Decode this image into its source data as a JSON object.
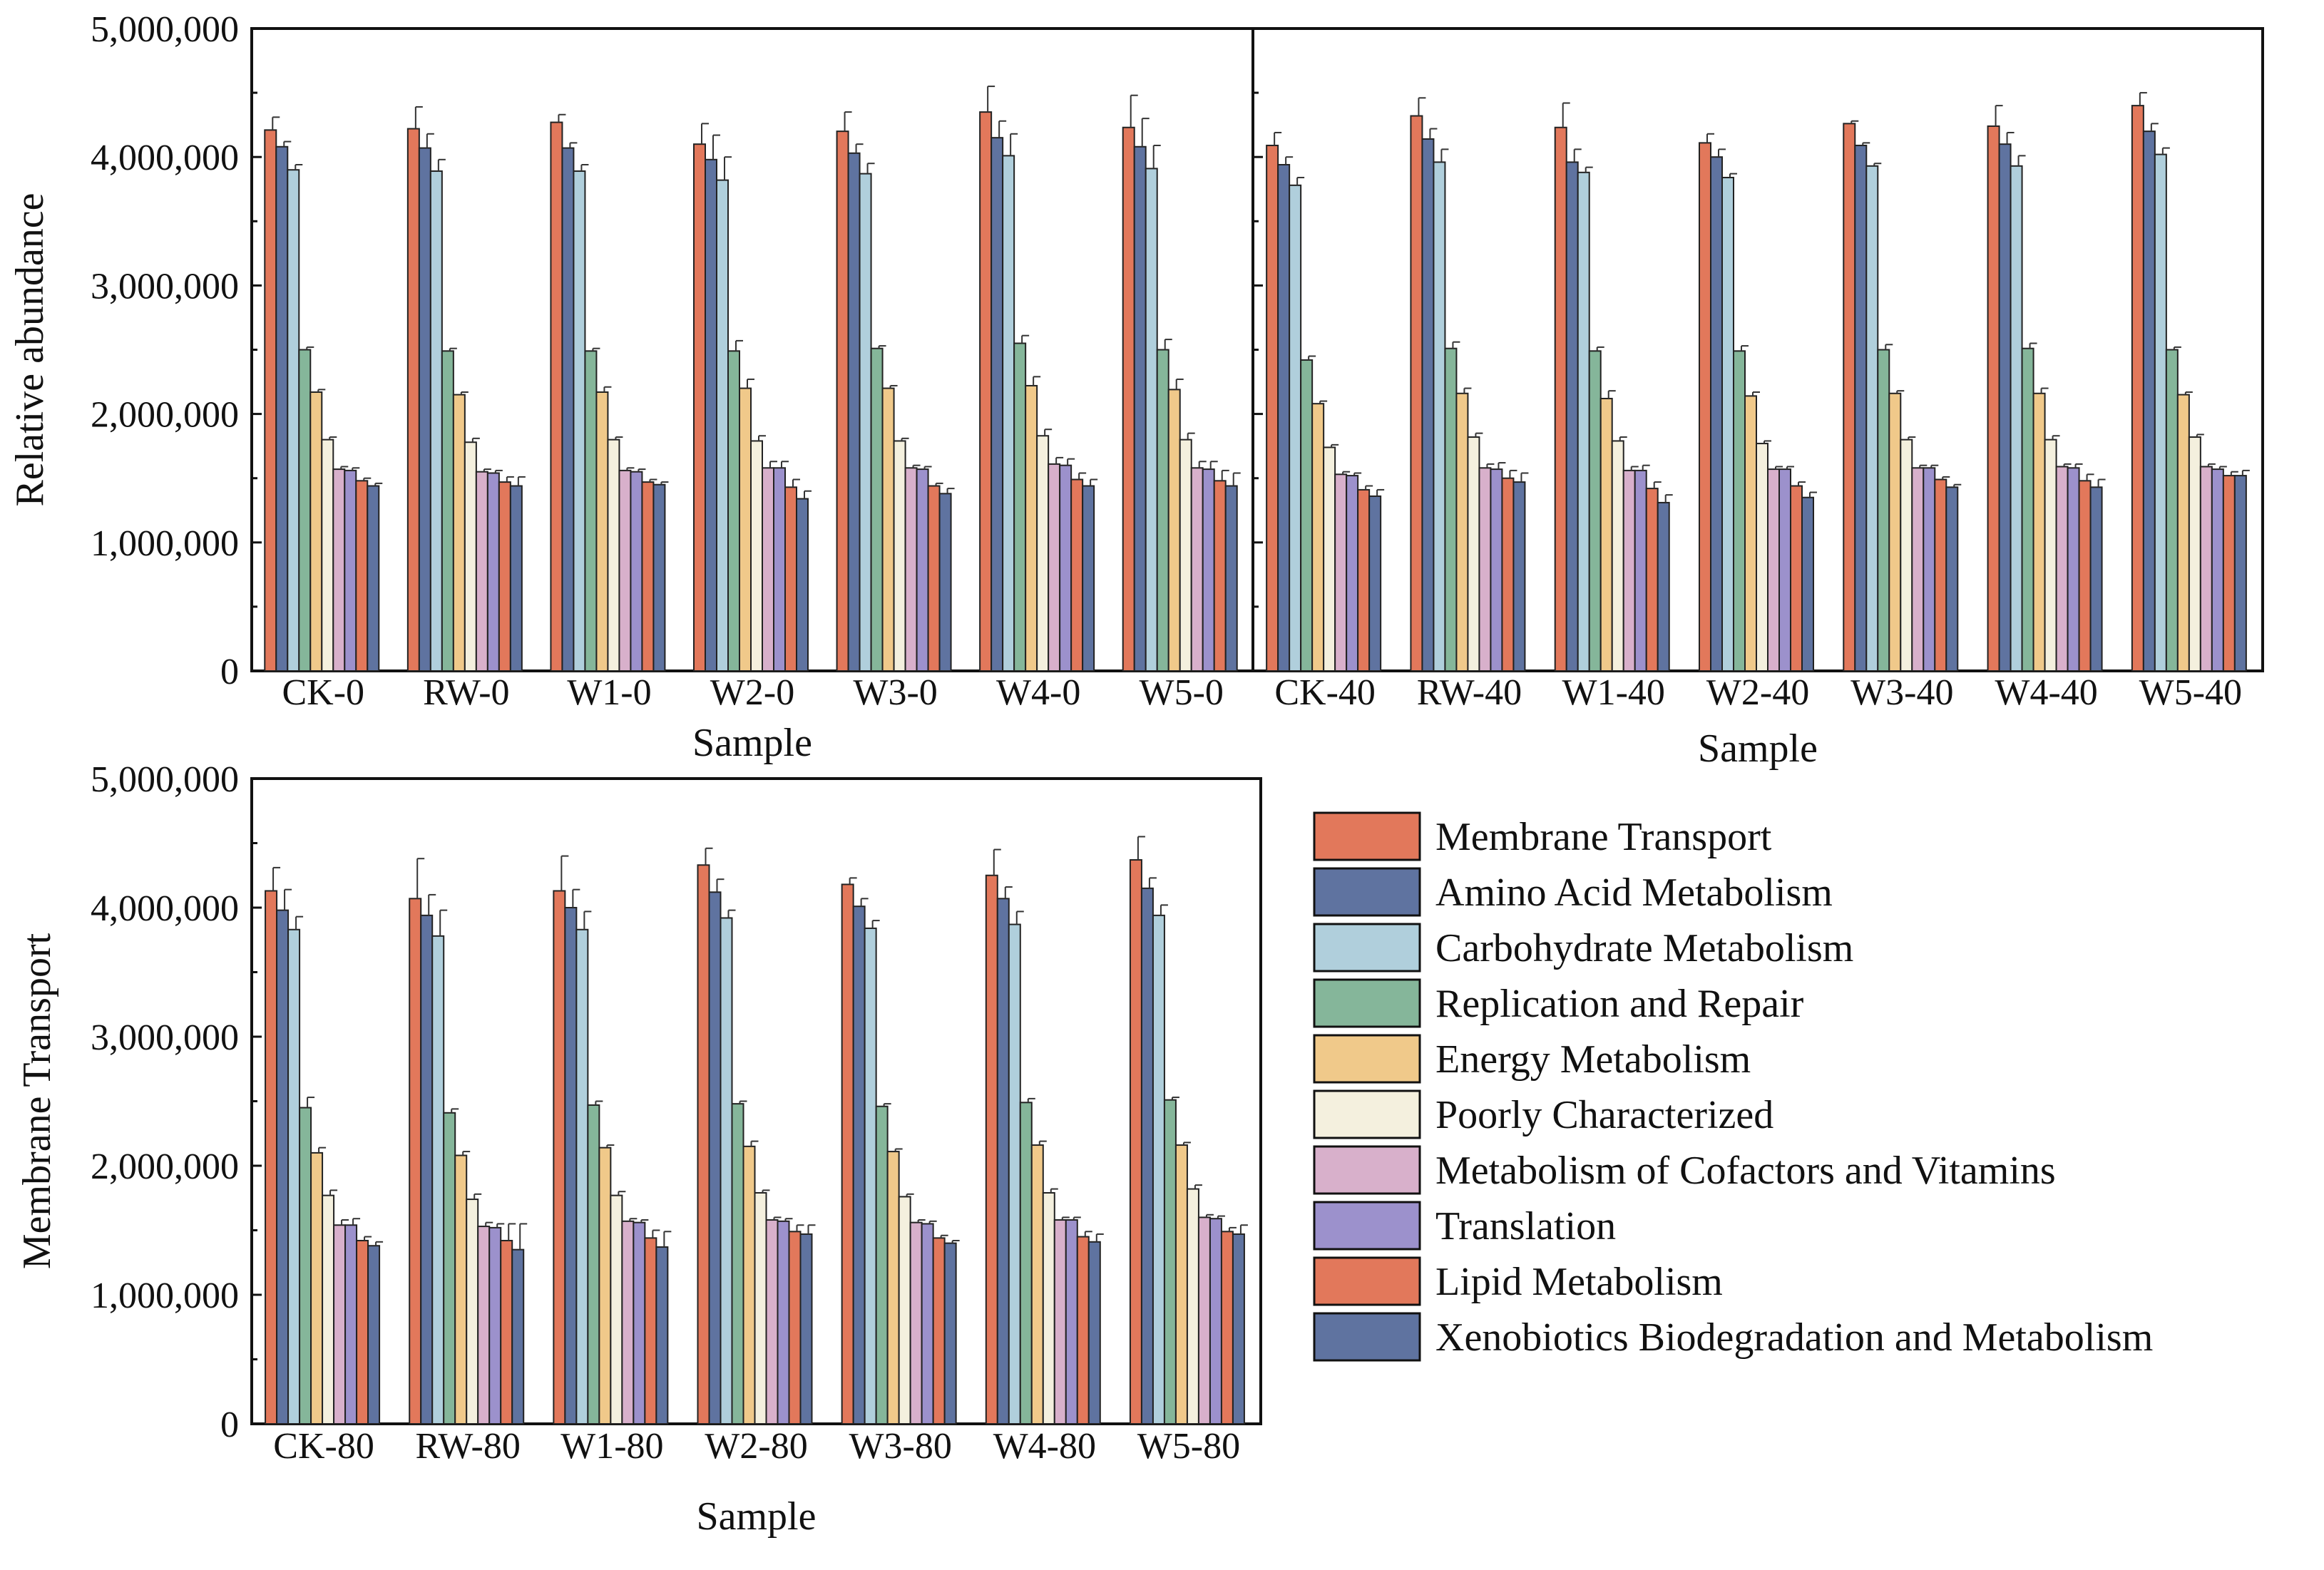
{
  "chart_data": [
    {
      "type": "bar",
      "panel": "top-left",
      "categories": [
        "CK-0",
        "RW-0",
        "W1-0",
        "W2-0",
        "W3-0",
        "W4-0",
        "W5-0"
      ],
      "xlabel": "Sample",
      "ylabel": "Relative abundance",
      "ylim": [
        0,
        5000000
      ],
      "yticks": [
        "0",
        "1,000,000",
        "2,000,000",
        "3,000,000",
        "4,000,000",
        "5,000,000"
      ],
      "grid": false,
      "series": [
        {
          "name": "Membrane Transport",
          "values": [
            4210000,
            4220000,
            4270000,
            4100000,
            4200000,
            4350000,
            4230000
          ],
          "errors": [
            100000,
            170000,
            60000,
            160000,
            150000,
            200000,
            250000
          ]
        },
        {
          "name": "Amino Acid Metabolism",
          "values": [
            4080000,
            4070000,
            4070000,
            3980000,
            4030000,
            4150000,
            4080000
          ],
          "errors": [
            40000,
            110000,
            40000,
            190000,
            70000,
            130000,
            220000
          ]
        },
        {
          "name": "Carbohydrate Metabolism",
          "values": [
            3900000,
            3890000,
            3890000,
            3820000,
            3870000,
            4010000,
            3910000
          ],
          "errors": [
            40000,
            90000,
            50000,
            180000,
            80000,
            170000,
            180000
          ]
        },
        {
          "name": "Replication and Repair",
          "values": [
            2500000,
            2490000,
            2490000,
            2490000,
            2510000,
            2550000,
            2500000
          ],
          "errors": [
            20000,
            20000,
            20000,
            80000,
            20000,
            60000,
            80000
          ]
        },
        {
          "name": "Energy Metabolism",
          "values": [
            2170000,
            2150000,
            2170000,
            2200000,
            2200000,
            2220000,
            2190000
          ],
          "errors": [
            20000,
            20000,
            40000,
            70000,
            20000,
            70000,
            80000
          ]
        },
        {
          "name": "Poorly Characterized",
          "values": [
            1800000,
            1780000,
            1800000,
            1790000,
            1790000,
            1830000,
            1800000
          ],
          "errors": [
            20000,
            30000,
            20000,
            40000,
            20000,
            50000,
            50000
          ]
        },
        {
          "name": "Metabolism of Cofactors and Vitamins",
          "values": [
            1570000,
            1550000,
            1560000,
            1580000,
            1580000,
            1610000,
            1580000
          ],
          "errors": [
            20000,
            20000,
            20000,
            50000,
            20000,
            50000,
            50000
          ]
        },
        {
          "name": "Translation",
          "values": [
            1560000,
            1540000,
            1550000,
            1580000,
            1570000,
            1600000,
            1570000
          ],
          "errors": [
            20000,
            20000,
            20000,
            50000,
            20000,
            50000,
            60000
          ]
        },
        {
          "name": "Lipid Metabolism",
          "values": [
            1480000,
            1470000,
            1470000,
            1430000,
            1440000,
            1490000,
            1480000
          ],
          "errors": [
            20000,
            40000,
            20000,
            60000,
            20000,
            50000,
            80000
          ]
        },
        {
          "name": "Xenobiotics Biodegradation and Metabolism",
          "values": [
            1440000,
            1440000,
            1450000,
            1340000,
            1380000,
            1440000,
            1440000
          ],
          "errors": [
            20000,
            70000,
            20000,
            60000,
            40000,
            50000,
            100000
          ]
        }
      ]
    },
    {
      "type": "bar",
      "panel": "top-right",
      "categories": [
        "CK-40",
        "RW-40",
        "W1-40",
        "W2-40",
        "W3-40",
        "W4-40",
        "W5-40"
      ],
      "xlabel": "Sample",
      "ylabel": "",
      "ylim": [
        0,
        5000000
      ],
      "grid": false,
      "series": [
        {
          "name": "Membrane Transport",
          "values": [
            4090000,
            4320000,
            4230000,
            4110000,
            4260000,
            4240000,
            4400000
          ],
          "errors": [
            100000,
            140000,
            190000,
            70000,
            20000,
            160000,
            100000
          ]
        },
        {
          "name": "Amino Acid Metabolism",
          "values": [
            3940000,
            4140000,
            3960000,
            4000000,
            4090000,
            4100000,
            4200000
          ],
          "errors": [
            60000,
            80000,
            100000,
            60000,
            20000,
            90000,
            60000
          ]
        },
        {
          "name": "Carbohydrate Metabolism",
          "values": [
            3780000,
            3960000,
            3880000,
            3840000,
            3930000,
            3930000,
            4020000
          ],
          "errors": [
            60000,
            100000,
            40000,
            30000,
            20000,
            80000,
            50000
          ]
        },
        {
          "name": "Replication and Repair",
          "values": [
            2420000,
            2510000,
            2490000,
            2490000,
            2500000,
            2510000,
            2500000
          ],
          "errors": [
            30000,
            50000,
            30000,
            40000,
            40000,
            40000,
            20000
          ]
        },
        {
          "name": "Energy Metabolism",
          "values": [
            2080000,
            2160000,
            2120000,
            2140000,
            2160000,
            2160000,
            2150000
          ],
          "errors": [
            20000,
            40000,
            60000,
            30000,
            20000,
            40000,
            20000
          ]
        },
        {
          "name": "Poorly Characterized",
          "values": [
            1740000,
            1820000,
            1790000,
            1770000,
            1800000,
            1800000,
            1820000
          ],
          "errors": [
            20000,
            30000,
            30000,
            20000,
            20000,
            30000,
            20000
          ]
        },
        {
          "name": "Metabolism of Cofactors and Vitamins",
          "values": [
            1530000,
            1580000,
            1560000,
            1570000,
            1580000,
            1590000,
            1590000
          ],
          "errors": [
            20000,
            30000,
            30000,
            20000,
            20000,
            20000,
            20000
          ]
        },
        {
          "name": "Translation",
          "values": [
            1520000,
            1570000,
            1560000,
            1570000,
            1580000,
            1580000,
            1570000
          ],
          "errors": [
            20000,
            50000,
            40000,
            20000,
            20000,
            30000,
            20000
          ]
        },
        {
          "name": "Lipid Metabolism",
          "values": [
            1410000,
            1500000,
            1420000,
            1440000,
            1490000,
            1480000,
            1520000
          ],
          "errors": [
            30000,
            60000,
            50000,
            30000,
            20000,
            50000,
            30000
          ]
        },
        {
          "name": "Xenobiotics Biodegradation and Metabolism",
          "values": [
            1360000,
            1470000,
            1310000,
            1350000,
            1430000,
            1430000,
            1520000
          ],
          "errors": [
            50000,
            70000,
            60000,
            40000,
            20000,
            60000,
            40000
          ]
        }
      ]
    },
    {
      "type": "bar",
      "panel": "bottom-left",
      "categories": [
        "CK-80",
        "RW-80",
        "W1-80",
        "W2-80",
        "W3-80",
        "W4-80",
        "W5-80"
      ],
      "xlabel": "Sample",
      "ylabel": "Membrane Transport",
      "ylim": [
        0,
        5000000
      ],
      "yticks": [
        "0",
        "1,000,000",
        "2,000,000",
        "3,000,000",
        "4,000,000",
        "5,000,000"
      ],
      "grid": false,
      "series": [
        {
          "name": "Membrane Transport",
          "values": [
            4130000,
            4070000,
            4130000,
            4330000,
            4180000,
            4250000,
            4370000
          ],
          "errors": [
            180000,
            310000,
            270000,
            130000,
            50000,
            200000,
            180000
          ]
        },
        {
          "name": "Amino Acid Metabolism",
          "values": [
            3980000,
            3940000,
            4000000,
            4120000,
            4010000,
            4070000,
            4150000
          ],
          "errors": [
            160000,
            160000,
            140000,
            100000,
            60000,
            90000,
            80000
          ]
        },
        {
          "name": "Carbohydrate Metabolism",
          "values": [
            3830000,
            3780000,
            3830000,
            3920000,
            3840000,
            3870000,
            3940000
          ],
          "errors": [
            100000,
            200000,
            140000,
            60000,
            60000,
            100000,
            80000
          ]
        },
        {
          "name": "Replication and Repair",
          "values": [
            2450000,
            2410000,
            2470000,
            2480000,
            2460000,
            2490000,
            2510000
          ],
          "errors": [
            80000,
            30000,
            30000,
            20000,
            20000,
            30000,
            20000
          ]
        },
        {
          "name": "Energy Metabolism",
          "values": [
            2100000,
            2080000,
            2140000,
            2150000,
            2110000,
            2160000,
            2160000
          ],
          "errors": [
            40000,
            30000,
            20000,
            40000,
            20000,
            30000,
            20000
          ]
        },
        {
          "name": "Poorly Characterized",
          "values": [
            1770000,
            1740000,
            1770000,
            1790000,
            1760000,
            1790000,
            1820000
          ],
          "errors": [
            40000,
            40000,
            30000,
            20000,
            20000,
            30000,
            30000
          ]
        },
        {
          "name": "Metabolism of Cofactors and Vitamins",
          "values": [
            1540000,
            1530000,
            1570000,
            1580000,
            1560000,
            1580000,
            1600000
          ],
          "errors": [
            40000,
            30000,
            20000,
            20000,
            20000,
            20000,
            20000
          ]
        },
        {
          "name": "Translation",
          "values": [
            1540000,
            1520000,
            1560000,
            1570000,
            1550000,
            1580000,
            1590000
          ],
          "errors": [
            50000,
            30000,
            20000,
            20000,
            20000,
            20000,
            20000
          ]
        },
        {
          "name": "Lipid Metabolism",
          "values": [
            1420000,
            1420000,
            1440000,
            1490000,
            1440000,
            1450000,
            1490000
          ],
          "errors": [
            30000,
            130000,
            60000,
            50000,
            20000,
            40000,
            30000
          ]
        },
        {
          "name": "Xenobiotics Biodegradation and Metabolism",
          "values": [
            1380000,
            1350000,
            1370000,
            1470000,
            1400000,
            1410000,
            1470000
          ],
          "errors": [
            30000,
            200000,
            120000,
            70000,
            20000,
            60000,
            70000
          ]
        }
      ]
    }
  ],
  "legend": {
    "placement": "bottom-right",
    "items": [
      {
        "label": "Membrane Transport",
        "color": "#e2785b"
      },
      {
        "label": "Amino Acid Metabolism",
        "color": "#5f73a0"
      },
      {
        "label": "Carbohydrate Metabolism",
        "color": "#b0cfdc"
      },
      {
        "label": "Replication and Repair",
        "color": "#85b69a"
      },
      {
        "label": "Energy Metabolism",
        "color": "#f0c98a"
      },
      {
        "label": "Poorly Characterized",
        "color": "#f4f0de"
      },
      {
        "label": "Metabolism of Cofactors and Vitamins",
        "color": "#d8b0cb"
      },
      {
        "label": "Translation",
        "color": "#9c91cc"
      },
      {
        "label": "Lipid Metabolism",
        "color": "#e2785b"
      },
      {
        "label": "Xenobiotics Biodegradation and Metabolism",
        "color": "#5f73a0"
      }
    ]
  }
}
